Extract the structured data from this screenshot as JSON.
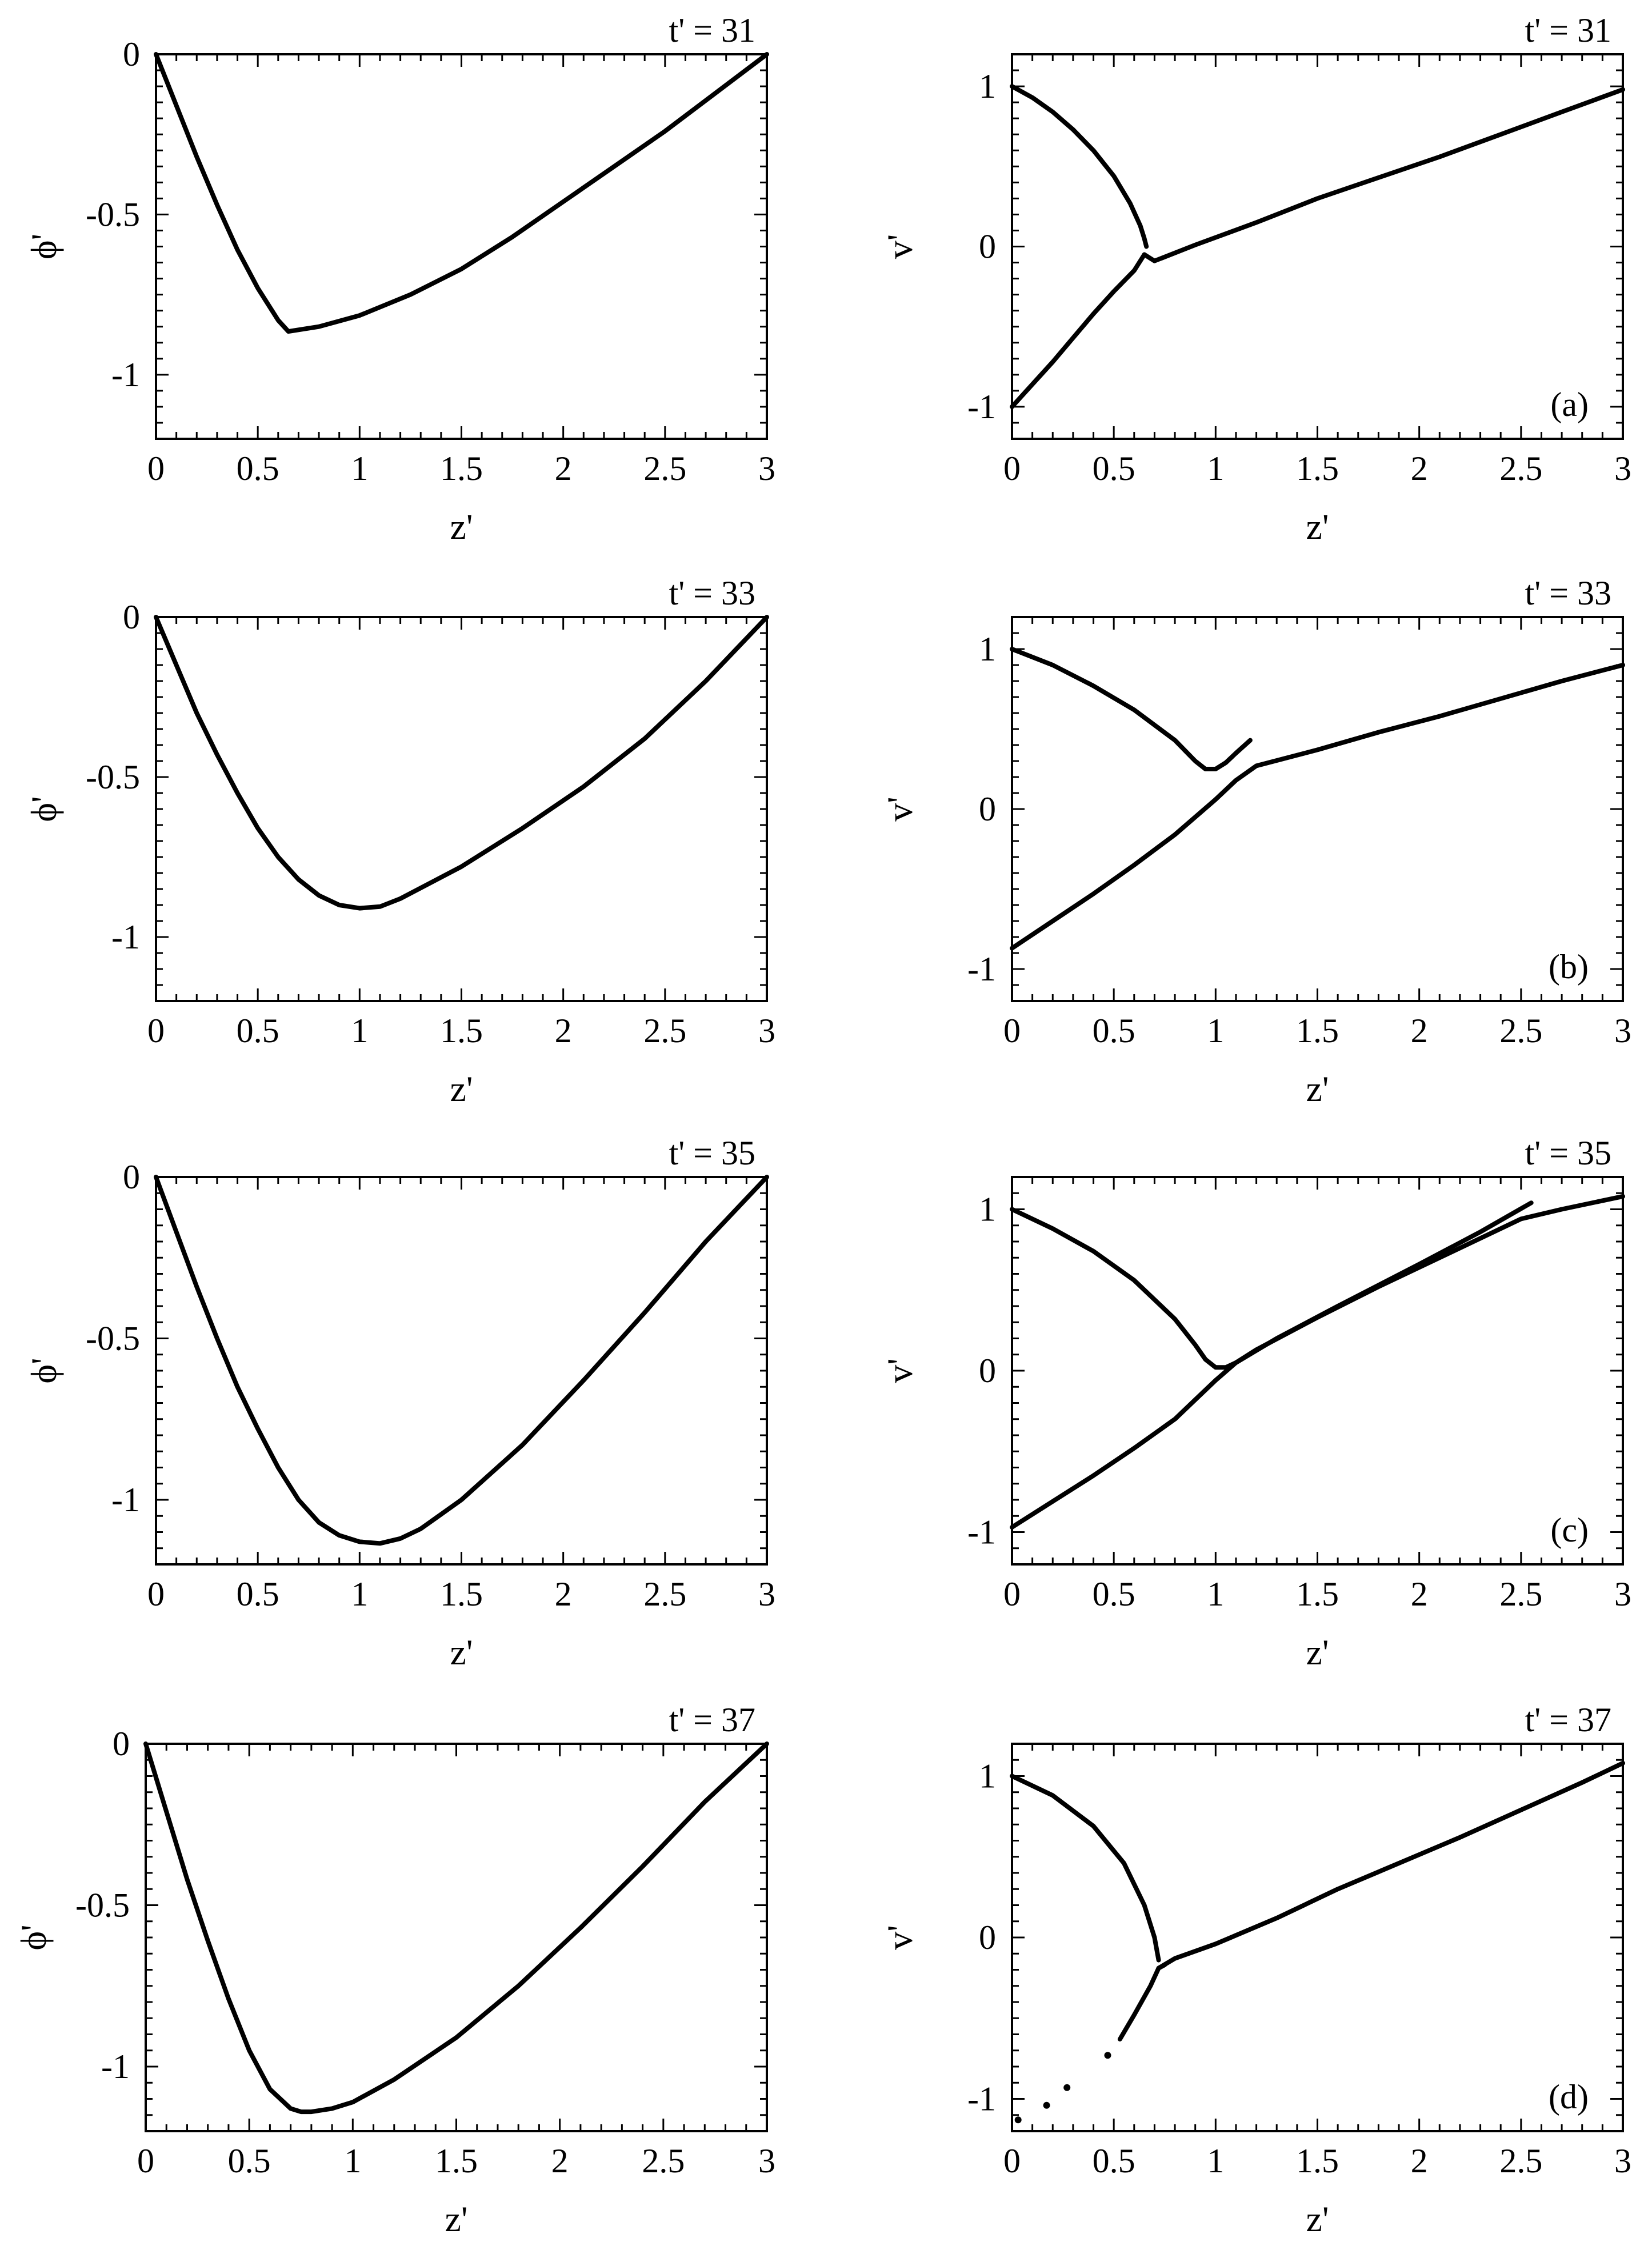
{
  "chart_data": [
    {
      "type": "line",
      "panel": "phi-31",
      "time_label": "t' = 31",
      "xlabel": "z'",
      "ylabel": "ϕ'",
      "xlim": [
        0,
        3
      ],
      "ylim": [
        -1.2,
        0
      ],
      "xticks": [
        "0",
        "0.5",
        "1",
        "1.5",
        "2",
        "2.5",
        "3"
      ],
      "xtick_values": [
        0,
        0.5,
        1,
        1.5,
        2,
        2.5,
        3
      ],
      "yticks": [
        "0",
        "-0.5",
        "-1"
      ],
      "ytick_values": [
        0,
        -0.5,
        -1
      ],
      "series": [
        {
          "x": [
            0,
            0.1,
            0.2,
            0.3,
            0.4,
            0.5,
            0.6,
            0.65,
            0.8,
            1.0,
            1.25,
            1.5,
            1.75,
            2.0,
            2.25,
            2.5,
            2.75,
            3.0
          ],
          "y": [
            0,
            -0.16,
            -0.32,
            -0.47,
            -0.61,
            -0.73,
            -0.83,
            -0.865,
            -0.85,
            -0.815,
            -0.75,
            -0.67,
            -0.57,
            -0.46,
            -0.35,
            -0.24,
            -0.12,
            0
          ]
        }
      ]
    },
    {
      "type": "line",
      "panel": "v-31",
      "time_label": "t' = 31",
      "panel_label": "(a)",
      "xlabel": "z'",
      "ylabel": "v'",
      "xlim": [
        0,
        3
      ],
      "ylim": [
        -1.2,
        1.2
      ],
      "xticks": [
        "0",
        "0.5",
        "1",
        "1.5",
        "2",
        "2.5",
        "3"
      ],
      "xtick_values": [
        0,
        0.5,
        1,
        1.5,
        2,
        2.5,
        3
      ],
      "yticks": [
        "1",
        "0",
        "-1"
      ],
      "ytick_values": [
        1,
        0,
        -1
      ],
      "series": [
        {
          "x": [
            0,
            0.1,
            0.2,
            0.3,
            0.4,
            0.5,
            0.58,
            0.63,
            0.65,
            0.66
          ],
          "y": [
            1.0,
            0.93,
            0.84,
            0.73,
            0.6,
            0.44,
            0.27,
            0.13,
            0.05,
            0.0
          ]
        },
        {
          "x": [
            0,
            0.1,
            0.2,
            0.3,
            0.4,
            0.5,
            0.6,
            0.65
          ],
          "y": [
            -1.0,
            -0.86,
            -0.72,
            -0.57,
            -0.42,
            -0.28,
            -0.15,
            -0.05
          ]
        },
        {
          "x": [
            0.65,
            0.7,
            0.9,
            1.2,
            1.5,
            1.8,
            2.1,
            2.4,
            2.7,
            3.0
          ],
          "y": [
            -0.05,
            -0.09,
            0.01,
            0.15,
            0.3,
            0.43,
            0.56,
            0.7,
            0.84,
            0.98
          ]
        }
      ]
    },
    {
      "type": "line",
      "panel": "phi-33",
      "time_label": "t' = 33",
      "xlabel": "z'",
      "ylabel": "ϕ'",
      "xlim": [
        0,
        3
      ],
      "ylim": [
        -1.2,
        0
      ],
      "xticks": [
        "0",
        "0.5",
        "1",
        "1.5",
        "2",
        "2.5",
        "3"
      ],
      "xtick_values": [
        0,
        0.5,
        1,
        1.5,
        2,
        2.5,
        3
      ],
      "yticks": [
        "0",
        "-0.5",
        "-1"
      ],
      "ytick_values": [
        0,
        -0.5,
        -1
      ],
      "series": [
        {
          "x": [
            0,
            0.1,
            0.2,
            0.3,
            0.4,
            0.5,
            0.6,
            0.7,
            0.8,
            0.9,
            1.0,
            1.1,
            1.2,
            1.5,
            1.8,
            2.1,
            2.4,
            2.7,
            3.0
          ],
          "y": [
            0,
            -0.15,
            -0.3,
            -0.43,
            -0.55,
            -0.66,
            -0.75,
            -0.82,
            -0.87,
            -0.9,
            -0.91,
            -0.905,
            -0.88,
            -0.78,
            -0.66,
            -0.53,
            -0.38,
            -0.2,
            0
          ]
        }
      ]
    },
    {
      "type": "line",
      "panel": "v-33",
      "time_label": "t' = 33",
      "panel_label": "(b)",
      "xlabel": "z'",
      "ylabel": "v'",
      "xlim": [
        0,
        3
      ],
      "ylim": [
        -1.2,
        1.2
      ],
      "xticks": [
        "0",
        "0.5",
        "1",
        "1.5",
        "2",
        "2.5",
        "3"
      ],
      "xtick_values": [
        0,
        0.5,
        1,
        1.5,
        2,
        2.5,
        3
      ],
      "yticks": [
        "1",
        "0",
        "-1"
      ],
      "ytick_values": [
        1,
        0,
        -1
      ],
      "series": [
        {
          "x": [
            0,
            0.2,
            0.4,
            0.6,
            0.8,
            0.9,
            0.95,
            1.0,
            1.05,
            1.1,
            1.17
          ],
          "y": [
            1.0,
            0.9,
            0.77,
            0.62,
            0.43,
            0.3,
            0.25,
            0.25,
            0.29,
            0.35,
            0.43
          ]
        },
        {
          "x": [
            0,
            0.2,
            0.4,
            0.6,
            0.8,
            1.0,
            1.1,
            1.2,
            1.5,
            1.8,
            2.1,
            2.4,
            2.7,
            3.0
          ],
          "y": [
            -0.87,
            -0.7,
            -0.53,
            -0.35,
            -0.16,
            0.06,
            0.18,
            0.27,
            0.37,
            0.48,
            0.58,
            0.69,
            0.8,
            0.9
          ]
        }
      ]
    },
    {
      "type": "line",
      "panel": "phi-35",
      "time_label": "t' = 35",
      "xlabel": "z'",
      "ylabel": "ϕ'",
      "xlim": [
        0,
        3
      ],
      "ylim": [
        -1.2,
        0
      ],
      "xticks": [
        "0",
        "0.5",
        "1",
        "1.5",
        "2",
        "2.5",
        "3"
      ],
      "xtick_values": [
        0,
        0.5,
        1,
        1.5,
        2,
        2.5,
        3
      ],
      "yticks": [
        "0",
        "-0.5",
        "-1"
      ],
      "ytick_values": [
        0,
        -0.5,
        -1
      ],
      "series": [
        {
          "x": [
            0,
            0.1,
            0.2,
            0.3,
            0.4,
            0.5,
            0.6,
            0.7,
            0.8,
            0.9,
            1.0,
            1.1,
            1.2,
            1.3,
            1.5,
            1.8,
            2.1,
            2.4,
            2.7,
            3.0
          ],
          "y": [
            0,
            -0.17,
            -0.34,
            -0.5,
            -0.65,
            -0.78,
            -0.9,
            -1.0,
            -1.07,
            -1.11,
            -1.13,
            -1.135,
            -1.12,
            -1.09,
            -1.0,
            -0.83,
            -0.63,
            -0.42,
            -0.2,
            0
          ]
        }
      ]
    },
    {
      "type": "line",
      "panel": "v-35",
      "time_label": "t' = 35",
      "panel_label": "(c)",
      "xlabel": "z'",
      "ylabel": "v'",
      "xlim": [
        0,
        3
      ],
      "ylim": [
        -1.2,
        1.2
      ],
      "xticks": [
        "0",
        "0.5",
        "1",
        "1.5",
        "2",
        "2.5",
        "3"
      ],
      "xtick_values": [
        0,
        0.5,
        1,
        1.5,
        2,
        2.5,
        3
      ],
      "yticks": [
        "1",
        "0",
        "-1"
      ],
      "ytick_values": [
        1,
        0,
        -1
      ],
      "series": [
        {
          "x": [
            0,
            0.2,
            0.4,
            0.6,
            0.8,
            0.9,
            0.95,
            1.0,
            1.05,
            1.1,
            1.3,
            1.6,
            2.0,
            2.3,
            2.55
          ],
          "y": [
            1.0,
            0.88,
            0.74,
            0.56,
            0.32,
            0.16,
            0.07,
            0.02,
            0.02,
            0.05,
            0.2,
            0.4,
            0.66,
            0.86,
            1.04
          ]
        },
        {
          "x": [
            0,
            0.2,
            0.4,
            0.6,
            0.8,
            0.9,
            1.0,
            1.1,
            1.2,
            1.5,
            1.8,
            2.1,
            2.5,
            2.7,
            3.0
          ],
          "y": [
            -0.97,
            -0.81,
            -0.65,
            -0.48,
            -0.3,
            -0.18,
            -0.06,
            0.05,
            0.13,
            0.33,
            0.52,
            0.7,
            0.94,
            1.0,
            1.08
          ]
        }
      ]
    },
    {
      "type": "line",
      "panel": "phi-37",
      "time_label": "t' = 37",
      "xlabel": "z'",
      "ylabel": "ϕ'",
      "xlim": [
        0,
        3
      ],
      "ylim": [
        -1.2,
        0
      ],
      "xticks": [
        "0",
        "0.5",
        "1",
        "1.5",
        "2",
        "2.5",
        "3"
      ],
      "xtick_values": [
        0,
        0.5,
        1,
        1.5,
        2,
        2.5,
        3
      ],
      "yticks": [
        "0",
        "-0.5",
        "-1"
      ],
      "ytick_values": [
        0,
        -0.5,
        -1
      ],
      "series": [
        {
          "x": [
            0,
            0.1,
            0.2,
            0.3,
            0.4,
            0.5,
            0.6,
            0.7,
            0.75,
            0.8,
            0.9,
            1.0,
            1.2,
            1.5,
            1.8,
            2.1,
            2.4,
            2.7,
            3.0
          ],
          "y": [
            0,
            -0.21,
            -0.42,
            -0.61,
            -0.79,
            -0.95,
            -1.07,
            -1.13,
            -1.14,
            -1.14,
            -1.13,
            -1.11,
            -1.04,
            -0.91,
            -0.75,
            -0.57,
            -0.38,
            -0.18,
            0
          ]
        }
      ]
    },
    {
      "type": "line",
      "panel": "v-37",
      "time_label": "t' = 37",
      "panel_label": "(d)",
      "xlabel": "z'",
      "ylabel": "v'",
      "xlim": [
        0,
        3
      ],
      "ylim": [
        -1.2,
        1.2
      ],
      "xticks": [
        "0",
        "0.5",
        "1",
        "1.5",
        "2",
        "2.5",
        "3"
      ],
      "xtick_values": [
        0,
        0.5,
        1,
        1.5,
        2,
        2.5,
        3
      ],
      "yticks": [
        "1",
        "0",
        "-1"
      ],
      "ytick_values": [
        1,
        0,
        -1
      ],
      "series": [
        {
          "x": [
            0,
            0.2,
            0.4,
            0.55,
            0.65,
            0.7,
            0.72
          ],
          "y": [
            1.0,
            0.88,
            0.69,
            0.46,
            0.2,
            0.0,
            -0.14
          ]
        },
        {
          "x": [
            0.53,
            0.6,
            0.68,
            0.72,
            0.75
          ],
          "y": [
            -0.63,
            -0.48,
            -0.3,
            -0.19,
            -0.17
          ]
        },
        {
          "x": [
            0.72,
            0.8,
            1.0,
            1.3,
            1.6,
            1.9,
            2.2,
            2.5,
            2.8,
            3.0
          ],
          "y": [
            -0.19,
            -0.13,
            -0.04,
            0.12,
            0.3,
            0.46,
            0.62,
            0.79,
            0.96,
            1.08
          ]
        }
      ],
      "markers": {
        "x": [
          0.03,
          0.17,
          0.27,
          0.47
        ],
        "y": [
          -1.13,
          -1.04,
          -0.93,
          -0.73
        ]
      }
    }
  ]
}
